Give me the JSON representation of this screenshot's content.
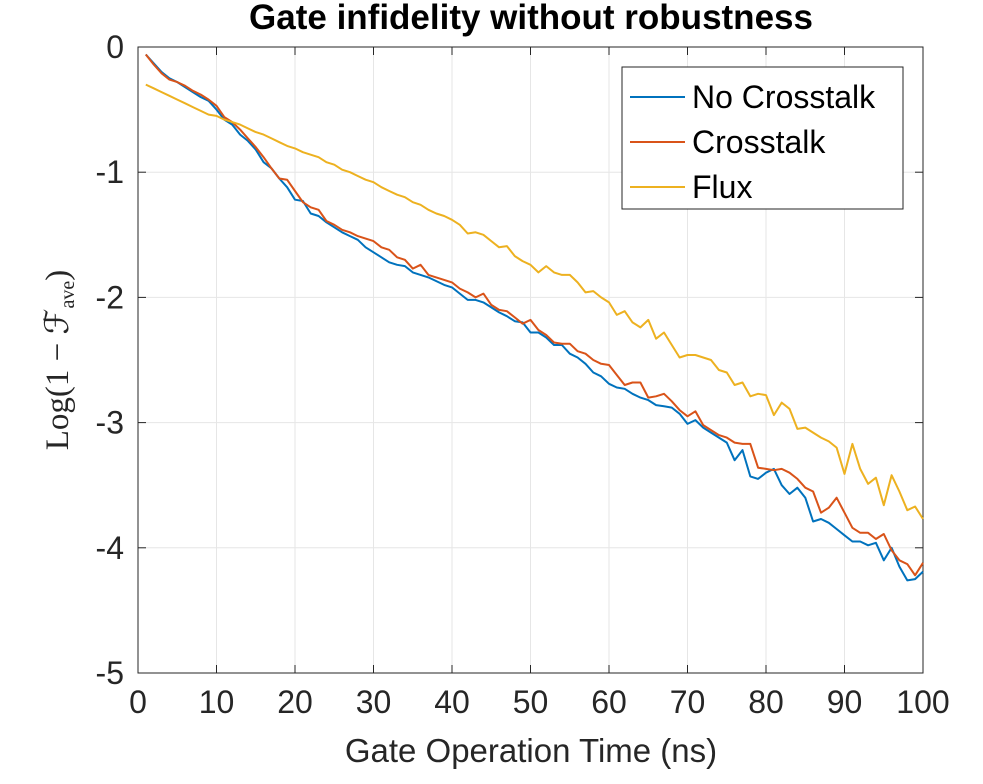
{
  "chart_data": {
    "type": "line",
    "title": "Gate infidelity without robustness",
    "xlabel": "Gate Operation Time (ns)",
    "ylabel": {
      "main": "Log(1 − ℱ",
      "sub": "ave",
      "close": ")"
    },
    "xlim": [
      0,
      100
    ],
    "ylim": [
      -5,
      0
    ],
    "xticks": [
      "0",
      "10",
      "20",
      "30",
      "40",
      "50",
      "60",
      "70",
      "80",
      "90",
      "100"
    ],
    "yticks": [
      "0",
      "-1",
      "-2",
      "-3",
      "-4",
      "-5"
    ],
    "grid": true,
    "legend_position": "top-right",
    "series": [
      {
        "name": "No Crosstalk",
        "color": "#0072BD",
        "x": [
          1,
          2,
          3,
          4,
          5,
          6,
          7,
          8,
          9,
          10,
          11,
          12,
          13,
          14,
          15,
          16,
          17,
          18,
          19,
          20,
          21,
          22,
          23,
          24,
          25,
          26,
          27,
          28,
          29,
          30,
          31,
          32,
          33,
          34,
          35,
          36,
          37,
          38,
          39,
          40,
          41,
          42,
          43,
          44,
          45,
          46,
          47,
          48,
          49,
          50,
          51,
          52,
          53,
          54,
          55,
          56,
          57,
          58,
          59,
          60,
          61,
          62,
          63,
          64,
          65,
          66,
          67,
          68,
          69,
          70,
          71,
          72,
          73,
          74,
          75,
          76,
          77,
          78,
          79,
          80,
          81,
          82,
          83,
          84,
          85,
          86,
          87,
          88,
          89,
          90,
          91,
          92,
          93,
          94,
          95,
          96,
          97,
          98,
          99,
          100
        ],
        "y": [
          -0.06,
          -0.13,
          -0.2,
          -0.25,
          -0.28,
          -0.32,
          -0.36,
          -0.4,
          -0.43,
          -0.5,
          -0.58,
          -0.62,
          -0.7,
          -0.75,
          -0.82,
          -0.92,
          -0.97,
          -1.05,
          -1.12,
          -1.22,
          -1.23,
          -1.33,
          -1.35,
          -1.4,
          -1.44,
          -1.48,
          -1.51,
          -1.54,
          -1.6,
          -1.64,
          -1.68,
          -1.72,
          -1.74,
          -1.75,
          -1.8,
          -1.82,
          -1.84,
          -1.87,
          -1.9,
          -1.92,
          -1.97,
          -2.02,
          -2.02,
          -2.04,
          -2.08,
          -2.12,
          -2.15,
          -2.19,
          -2.2,
          -2.28,
          -2.28,
          -2.32,
          -2.38,
          -2.38,
          -2.45,
          -2.48,
          -2.53,
          -2.6,
          -2.63,
          -2.69,
          -2.72,
          -2.73,
          -2.77,
          -2.8,
          -2.82,
          -2.86,
          -2.87,
          -2.88,
          -2.93,
          -3.01,
          -2.98,
          -3.04,
          -3.08,
          -3.12,
          -3.16,
          -3.3,
          -3.22,
          -3.43,
          -3.45,
          -3.4,
          -3.37,
          -3.5,
          -3.57,
          -3.52,
          -3.6,
          -3.79,
          -3.77,
          -3.8,
          -3.85,
          -3.9,
          -3.95,
          -3.95,
          -3.98,
          -3.96,
          -4.1,
          -4.0,
          -4.15,
          -4.26,
          -4.25,
          -4.19
        ]
      },
      {
        "name": "Crosstalk",
        "color": "#D95319",
        "x": [
          1,
          2,
          3,
          4,
          5,
          6,
          7,
          8,
          9,
          10,
          11,
          12,
          13,
          14,
          15,
          16,
          17,
          18,
          19,
          20,
          21,
          22,
          23,
          24,
          25,
          26,
          27,
          28,
          29,
          30,
          31,
          32,
          33,
          34,
          35,
          36,
          37,
          38,
          39,
          40,
          41,
          42,
          43,
          44,
          45,
          46,
          47,
          48,
          49,
          50,
          51,
          52,
          53,
          54,
          55,
          56,
          57,
          58,
          59,
          60,
          61,
          62,
          63,
          64,
          65,
          66,
          67,
          68,
          69,
          70,
          71,
          72,
          73,
          74,
          75,
          76,
          77,
          78,
          79,
          80,
          81,
          82,
          83,
          84,
          85,
          86,
          87,
          88,
          89,
          90,
          91,
          92,
          93,
          94,
          95,
          96,
          97,
          98,
          99,
          100
        ],
        "y": [
          -0.06,
          -0.14,
          -0.21,
          -0.26,
          -0.28,
          -0.31,
          -0.35,
          -0.38,
          -0.42,
          -0.47,
          -0.56,
          -0.6,
          -0.66,
          -0.73,
          -0.8,
          -0.88,
          -0.97,
          -1.05,
          -1.06,
          -1.15,
          -1.24,
          -1.28,
          -1.3,
          -1.39,
          -1.42,
          -1.46,
          -1.48,
          -1.51,
          -1.53,
          -1.55,
          -1.6,
          -1.62,
          -1.68,
          -1.7,
          -1.77,
          -1.74,
          -1.82,
          -1.84,
          -1.86,
          -1.88,
          -1.93,
          -1.96,
          -2.0,
          -1.97,
          -2.06,
          -2.1,
          -2.11,
          -2.16,
          -2.21,
          -2.18,
          -2.26,
          -2.3,
          -2.36,
          -2.37,
          -2.37,
          -2.43,
          -2.45,
          -2.5,
          -2.53,
          -2.54,
          -2.62,
          -2.7,
          -2.68,
          -2.68,
          -2.8,
          -2.79,
          -2.77,
          -2.83,
          -2.9,
          -2.95,
          -2.91,
          -3.02,
          -3.06,
          -3.1,
          -3.12,
          -3.16,
          -3.17,
          -3.17,
          -3.36,
          -3.37,
          -3.38,
          -3.37,
          -3.4,
          -3.45,
          -3.52,
          -3.55,
          -3.72,
          -3.68,
          -3.6,
          -3.72,
          -3.84,
          -3.88,
          -3.88,
          -3.93,
          -3.89,
          -4.02,
          -4.1,
          -4.13,
          -4.22,
          -4.12
        ]
      },
      {
        "name": "Flux",
        "color": "#EDB120",
        "x": [
          1,
          2,
          3,
          4,
          5,
          6,
          7,
          8,
          9,
          10,
          11,
          12,
          13,
          14,
          15,
          16,
          17,
          18,
          19,
          20,
          21,
          22,
          23,
          24,
          25,
          26,
          27,
          28,
          29,
          30,
          31,
          32,
          33,
          34,
          35,
          36,
          37,
          38,
          39,
          40,
          41,
          42,
          43,
          44,
          45,
          46,
          47,
          48,
          49,
          50,
          51,
          52,
          53,
          54,
          55,
          56,
          57,
          58,
          59,
          60,
          61,
          62,
          63,
          64,
          65,
          66,
          67,
          68,
          69,
          70,
          71,
          72,
          73,
          74,
          75,
          76,
          77,
          78,
          79,
          80,
          81,
          82,
          83,
          84,
          85,
          86,
          87,
          88,
          89,
          90,
          91,
          92,
          93,
          94,
          95,
          96,
          97,
          98,
          99,
          100
        ],
        "y": [
          -0.3,
          -0.33,
          -0.36,
          -0.39,
          -0.42,
          -0.45,
          -0.48,
          -0.51,
          -0.54,
          -0.55,
          -0.58,
          -0.6,
          -0.62,
          -0.65,
          -0.68,
          -0.7,
          -0.73,
          -0.76,
          -0.79,
          -0.81,
          -0.84,
          -0.86,
          -0.88,
          -0.92,
          -0.94,
          -0.98,
          -1.0,
          -1.03,
          -1.06,
          -1.08,
          -1.12,
          -1.15,
          -1.18,
          -1.2,
          -1.24,
          -1.26,
          -1.3,
          -1.33,
          -1.35,
          -1.38,
          -1.42,
          -1.49,
          -1.48,
          -1.5,
          -1.55,
          -1.6,
          -1.59,
          -1.67,
          -1.71,
          -1.74,
          -1.8,
          -1.75,
          -1.8,
          -1.82,
          -1.82,
          -1.88,
          -1.96,
          -1.95,
          -2.0,
          -2.04,
          -2.14,
          -2.11,
          -2.2,
          -2.24,
          -2.18,
          -2.33,
          -2.28,
          -2.38,
          -2.48,
          -2.46,
          -2.46,
          -2.48,
          -2.5,
          -2.58,
          -2.6,
          -2.7,
          -2.68,
          -2.79,
          -2.77,
          -2.78,
          -2.94,
          -2.84,
          -2.89,
          -3.05,
          -3.04,
          -3.08,
          -3.12,
          -3.15,
          -3.2,
          -3.41,
          -3.17,
          -3.37,
          -3.49,
          -3.44,
          -3.66,
          -3.42,
          -3.55,
          -3.7,
          -3.67,
          -3.77
        ]
      }
    ]
  }
}
